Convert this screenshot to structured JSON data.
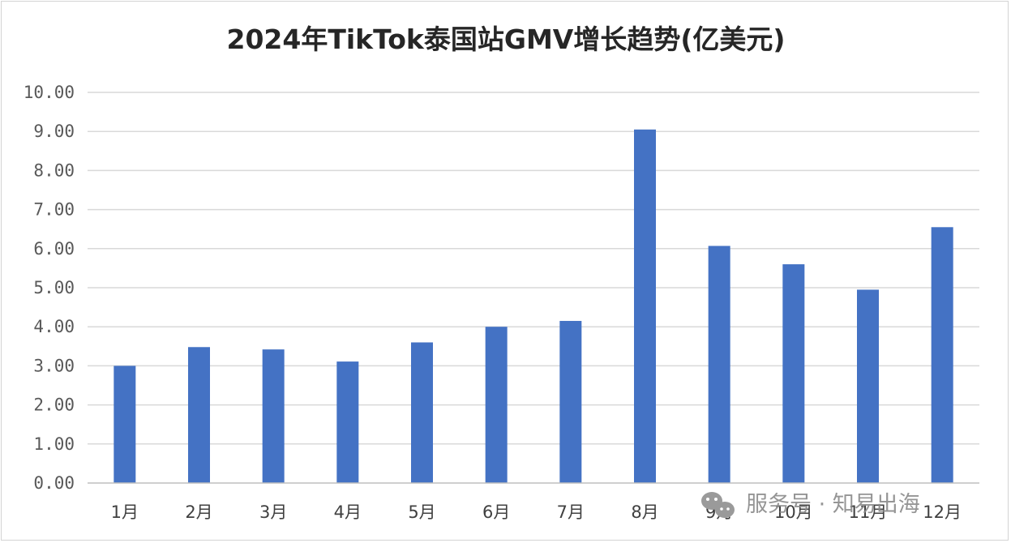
{
  "chart_data": {
    "type": "bar",
    "title": "2024年TikTok泰国站GMV增长趋势(亿美元)",
    "categories": [
      "1月",
      "2月",
      "3月",
      "4月",
      "5月",
      "6月",
      "7月",
      "8月",
      "9月",
      "10月",
      "11月",
      "12月"
    ],
    "series": [
      {
        "values": [
          3.0,
          3.48,
          3.42,
          3.11,
          3.6,
          4.0,
          4.15,
          9.05,
          6.07,
          5.6,
          4.95,
          6.55
        ]
      }
    ],
    "ylim": [
      0,
      10
    ],
    "yticks": [
      "0.00",
      "1.00",
      "2.00",
      "3.00",
      "4.00",
      "5.00",
      "6.00",
      "7.00",
      "8.00",
      "9.00",
      "10.00"
    ],
    "grid": true,
    "legend": "none",
    "bar_color": "#4472c4",
    "grid_color": "#d9d9d9"
  },
  "watermark": {
    "text": "服务号 · 知易出海",
    "icon": "wechat-icon"
  }
}
